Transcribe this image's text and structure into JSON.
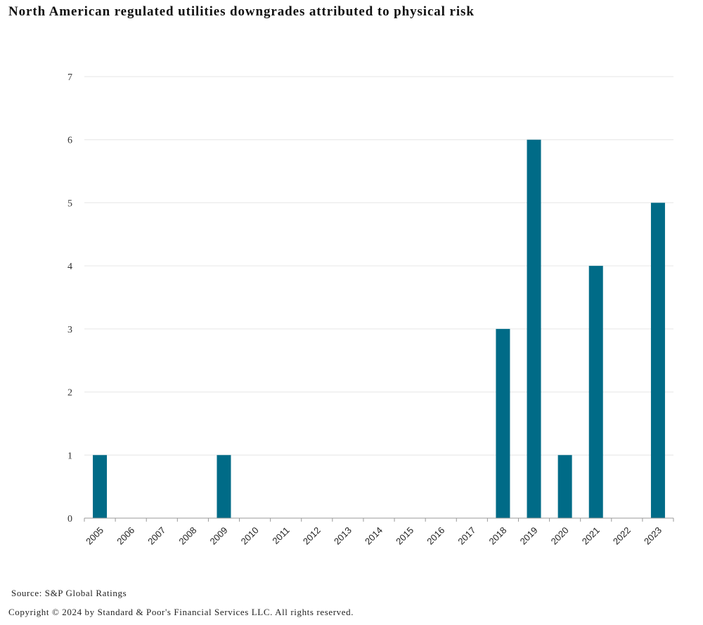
{
  "chart_data": {
    "type": "bar",
    "title": "North American regulated utilities downgrades attributed to physical risk",
    "xlabel": "",
    "ylabel": "",
    "categories": [
      "2005",
      "2006",
      "2007",
      "2008",
      "2009",
      "2010",
      "2011",
      "2012",
      "2013",
      "2014",
      "2015",
      "2016",
      "2017",
      "2018",
      "2019",
      "2020",
      "2021",
      "2022",
      "2023"
    ],
    "values": [
      1,
      0,
      0,
      0,
      1,
      0,
      0,
      0,
      0,
      0,
      0,
      0,
      0,
      3,
      6,
      1,
      4,
      0,
      5
    ],
    "ylim": [
      0,
      7
    ],
    "yticks": [
      "0",
      "1",
      "2",
      "3",
      "4",
      "5",
      "6",
      "7"
    ],
    "grid": true,
    "legend": "none",
    "bar_color": "#006b87",
    "grid_color": "#e6e6e6",
    "axis_color": "#999999"
  },
  "footer": {
    "source": "Source: S&P Global Ratings",
    "copyright": "Copyright © 2024 by Standard & Poor's Financial Services LLC. All rights reserved."
  }
}
